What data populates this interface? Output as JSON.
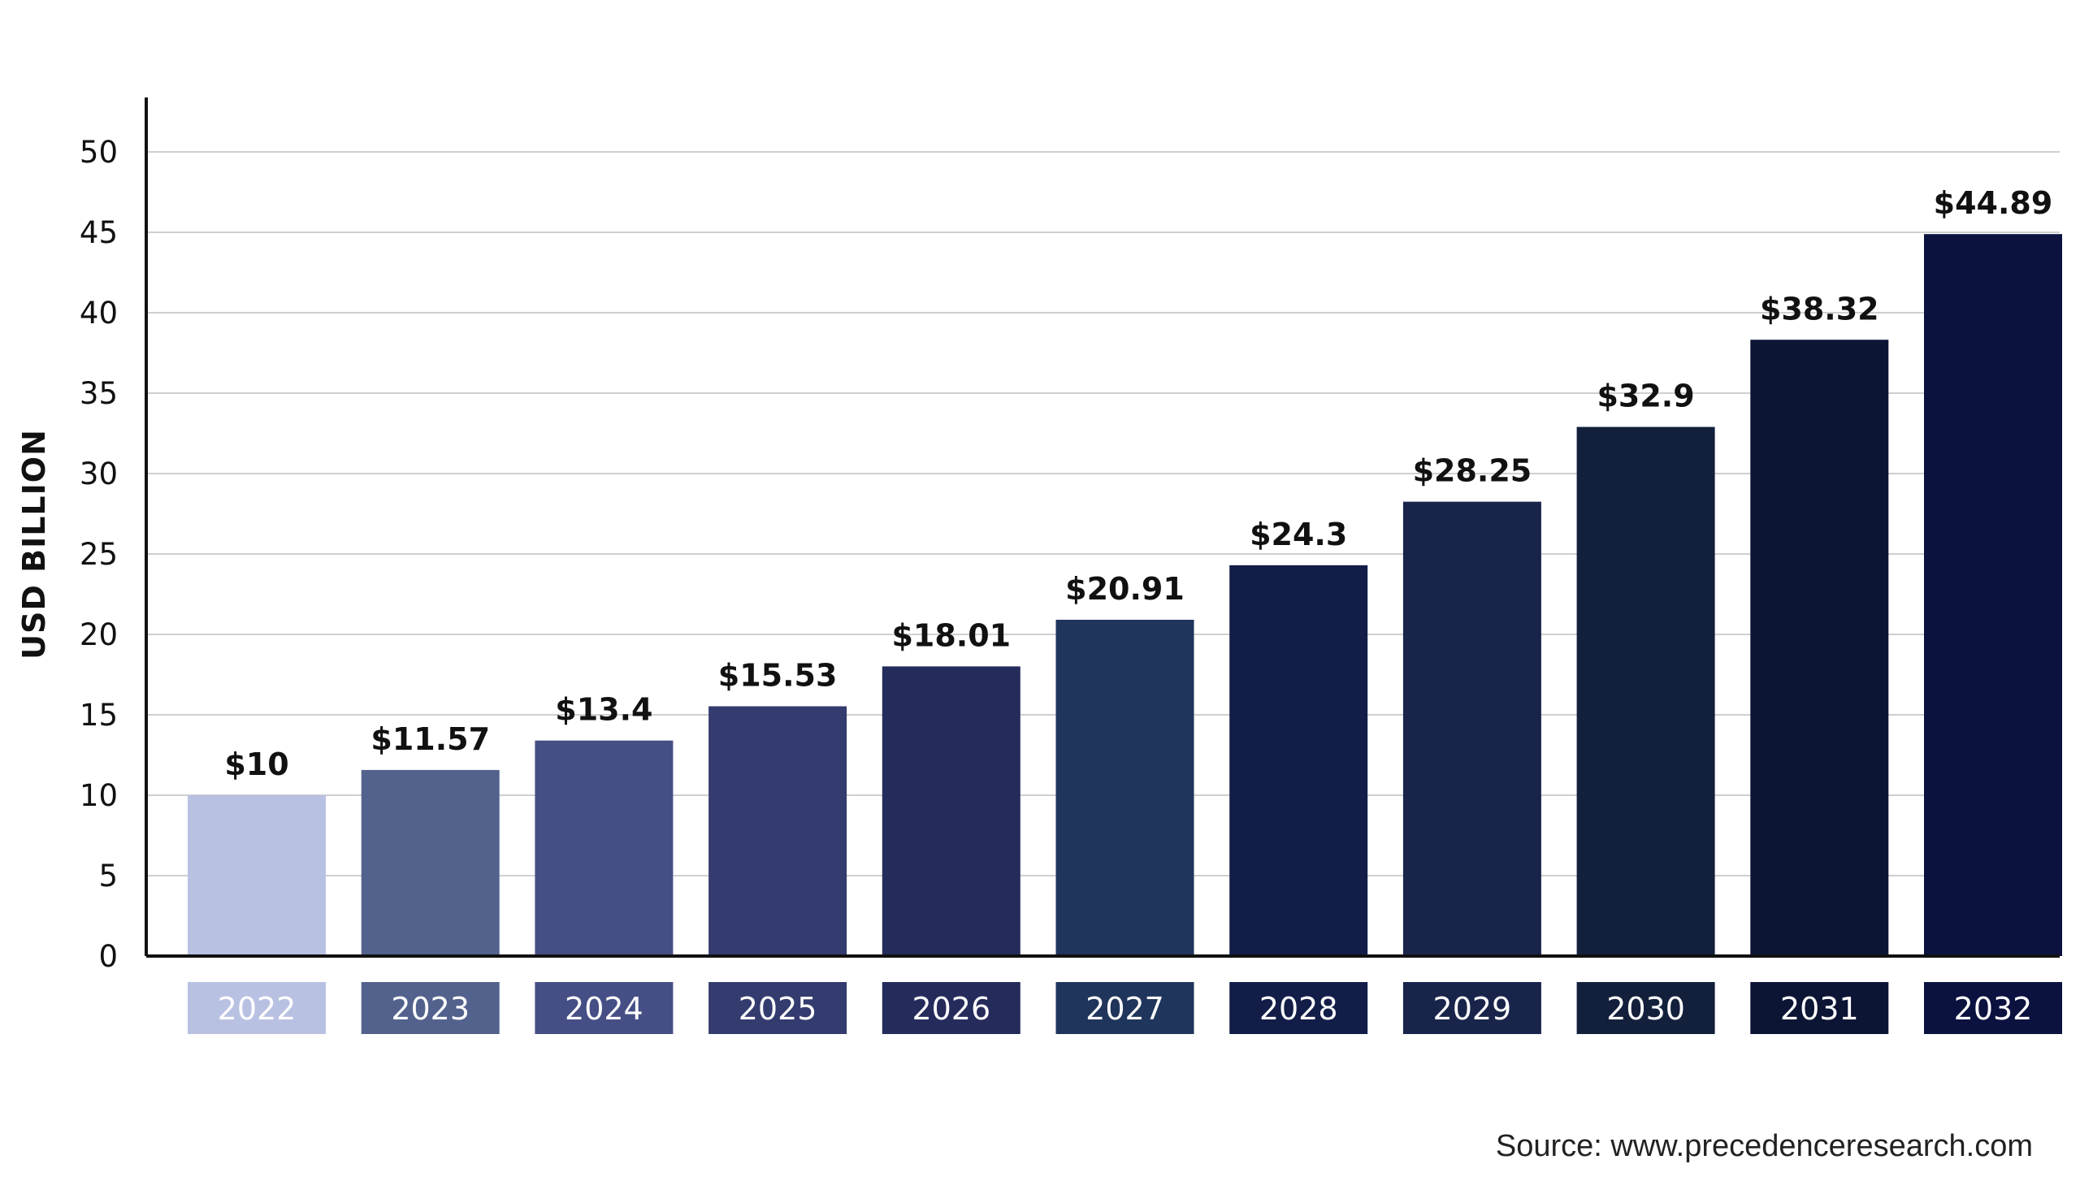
{
  "chart_data": {
    "type": "bar",
    "categories": [
      "2022",
      "2023",
      "2024",
      "2025",
      "2026",
      "2027",
      "2028",
      "2029",
      "2030",
      "2031",
      "2032"
    ],
    "values": [
      10,
      11.57,
      13.4,
      15.53,
      18.01,
      20.91,
      24.3,
      28.25,
      32.9,
      38.32,
      44.89
    ],
    "value_labels": [
      "$10",
      "$11.57",
      "$13.4",
      "$15.53",
      "$18.01",
      "$20.91",
      "$24.3",
      "$28.25",
      "$32.9",
      "$38.32",
      "$44.89"
    ],
    "bar_colors": [
      "#b9c1e3",
      "#53628d",
      "#454f85",
      "#343b6e",
      "#252c5c",
      "#1f355c",
      "#121d48",
      "#18244a",
      "#13203c",
      "#0d1535",
      "#0b1240"
    ],
    "title": "",
    "xlabel": "",
    "ylabel": "USD BILLION",
    "ylim": [
      0,
      50
    ],
    "yticks": [
      0,
      5,
      10,
      15,
      20,
      25,
      30,
      35,
      40,
      45,
      50
    ],
    "grid": true,
    "legend": "none"
  },
  "source": "Source: www.precedenceresearch.com"
}
